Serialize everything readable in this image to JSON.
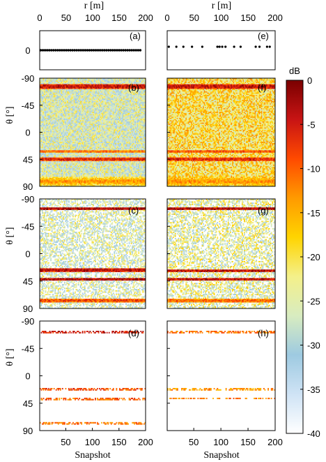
{
  "chart_data": {
    "type": "heatmap",
    "top_axis": {
      "label": "r [m]",
      "ticks": [
        0,
        50,
        100,
        150,
        200
      ],
      "range": [
        0,
        200
      ]
    },
    "x_axis": {
      "label": "Snapshot",
      "ticks": [
        50,
        100,
        150,
        200
      ],
      "range": [
        1,
        200
      ]
    },
    "y_axis_theta": {
      "label": "θ [°]",
      "ticks": [
        -90,
        -45,
        0,
        45,
        90
      ],
      "range": [
        -90,
        90
      ]
    },
    "colorbar": {
      "title": "dB",
      "ticks": [
        0,
        -5,
        -10,
        -15,
        -20,
        -25,
        -30,
        -35,
        -40
      ],
      "range": [
        -40,
        0
      ],
      "colormap": [
        "#ffffff",
        "#cfe3f5",
        "#9ecae1",
        "#d8ecc0",
        "#f4f08a",
        "#ffd400",
        "#ff9a00",
        "#ff4a00",
        "#c81414",
        "#7a0000"
      ]
    },
    "panels": {
      "a": {
        "label": "(a)",
        "kind": "positions",
        "y_tick": 0,
        "positions_m": [
          2,
          6,
          10,
          14,
          18,
          22,
          26,
          30,
          34,
          38,
          42,
          46,
          50,
          54,
          58,
          62,
          66,
          70,
          74,
          78,
          82,
          86,
          90,
          94,
          98,
          102,
          106,
          110,
          114,
          118,
          122,
          126,
          130,
          134,
          138,
          142,
          146,
          150,
          154,
          158,
          162,
          166,
          170,
          174,
          178,
          182,
          186,
          190
        ]
      },
      "e": {
        "label": "(e)",
        "kind": "positions",
        "positions_m": [
          3,
          17,
          30,
          46,
          65,
          93,
          97,
          102,
          108,
          124,
          136,
          164,
          171,
          185,
          190
        ]
      },
      "b": {
        "label": "(b)",
        "kind": "heatmap",
        "background_db": -27,
        "noise": "dense",
        "bands": [
          {
            "theta": -76,
            "db": -3,
            "width": 5
          },
          {
            "theta": 32,
            "db": -10,
            "width": 3
          },
          {
            "theta": 45,
            "db": -6,
            "width": 4
          },
          {
            "theta": 82,
            "db": -12,
            "width": 8
          }
        ]
      },
      "f": {
        "label": "(f)",
        "kind": "heatmap",
        "background_db": -20,
        "noise": "dense",
        "bands": [
          {
            "theta": -76,
            "db": -3,
            "width": 5
          },
          {
            "theta": 32,
            "db": -8,
            "width": 3
          },
          {
            "theta": 45,
            "db": -6,
            "width": 4
          },
          {
            "theta": 82,
            "db": -12,
            "width": 8
          }
        ]
      },
      "c": {
        "label": "(c)",
        "kind": "heatmap",
        "background_db": -30,
        "noise": "sparse",
        "bands": [
          {
            "theta": -74,
            "db": -2,
            "width": 3
          },
          {
            "theta": 27,
            "db": -3,
            "width": 3
          },
          {
            "theta": 42,
            "db": -2,
            "width": 3
          },
          {
            "theta": 77,
            "db": -8,
            "width": 3
          }
        ]
      },
      "g": {
        "label": "(g)",
        "kind": "heatmap",
        "background_db": -28,
        "noise": "sparse",
        "bands": [
          {
            "theta": -74,
            "db": -2,
            "width": 3
          },
          {
            "theta": 28,
            "db": -3,
            "width": 3
          },
          {
            "theta": 42,
            "db": -3,
            "width": 3
          },
          {
            "theta": 77,
            "db": -10,
            "width": 3
          }
        ]
      },
      "d": {
        "label": "(d)",
        "kind": "heatmap",
        "background_db": -40,
        "noise": "none",
        "bands": [
          {
            "theta": -72,
            "db": -4,
            "width": 2
          },
          {
            "theta": 22,
            "db": -8,
            "width": 2
          },
          {
            "theta": 38,
            "db": -9,
            "width": 2
          },
          {
            "theta": 78,
            "db": -10,
            "width": 2
          }
        ]
      },
      "h": {
        "label": "(h)",
        "kind": "heatmap",
        "background_db": -40,
        "noise": "none",
        "bands": [
          {
            "theta": -72,
            "db": -10,
            "width": 2
          },
          {
            "theta": 22,
            "db": -12,
            "width": 2
          },
          {
            "theta": 37,
            "db": -12,
            "width": 2
          }
        ]
      }
    }
  }
}
